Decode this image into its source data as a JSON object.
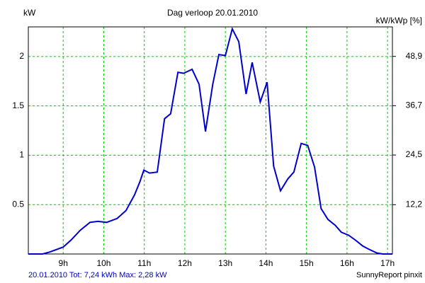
{
  "chart_data": {
    "type": "line",
    "title": "Dag  verloop 20.01.2010",
    "y_label": "kW",
    "y2_label": "kW/kWp [%]",
    "footer_left": "20.01.2010 Tot: 7,24 kWh Max: 2,28 kW",
    "footer_right": "SunnyReport pinxit",
    "x": [
      8.14,
      8.49,
      8.67,
      9.0,
      9.19,
      9.42,
      9.66,
      9.86,
      10.07,
      10.33,
      10.55,
      10.76,
      10.89,
      10.99,
      11.13,
      11.32,
      11.5,
      11.65,
      11.83,
      11.97,
      12.18,
      12.35,
      12.51,
      12.69,
      12.84,
      13.0,
      13.17,
      13.33,
      13.51,
      13.66,
      13.86,
      14.03,
      14.19,
      14.36,
      14.54,
      14.69,
      14.87,
      15.03,
      15.2,
      15.36,
      15.53,
      15.71,
      15.86,
      16.04,
      16.21,
      16.39,
      16.53,
      16.74,
      16.88,
      17.12
    ],
    "series": [
      {
        "color": "#0000cc",
        "values": [
          0,
          0,
          0.02,
          0.07,
          0.14,
          0.24,
          0.32,
          0.33,
          0.32,
          0.36,
          0.44,
          0.6,
          0.73,
          0.85,
          0.82,
          0.83,
          1.37,
          1.42,
          1.84,
          1.83,
          1.87,
          1.72,
          1.24,
          1.72,
          2.02,
          2.01,
          2.28,
          2.15,
          1.62,
          1.94,
          1.54,
          1.74,
          0.89,
          0.64,
          0.76,
          0.83,
          1.12,
          1.1,
          0.88,
          0.46,
          0.35,
          0.29,
          0.22,
          0.19,
          0.14,
          0.08,
          0.05,
          0.01,
          0,
          0
        ]
      }
    ],
    "xlim": [
      8.14,
      17.12
    ],
    "ylim": [
      0,
      2.3
    ],
    "y2lim": [
      0,
      56.2
    ],
    "xticks": [
      {
        "value": 9,
        "label": "9h"
      },
      {
        "value": 10,
        "label": "10h"
      },
      {
        "value": 11,
        "label": "11h"
      },
      {
        "value": 12,
        "label": "12h"
      },
      {
        "value": 13,
        "label": "13h"
      },
      {
        "value": 14,
        "label": "14h"
      },
      {
        "value": 15,
        "label": "15h"
      },
      {
        "value": 16,
        "label": "16h"
      },
      {
        "value": 17,
        "label": "17h"
      }
    ],
    "yticks": [
      0.5,
      1,
      1.5,
      2
    ],
    "y2ticks": [
      {
        "value": 12.2,
        "label": "12,2"
      },
      {
        "value": 24.5,
        "label": "24,5"
      },
      {
        "value": 36.7,
        "label": "36,7"
      },
      {
        "value": 48.9,
        "label": "48,9"
      }
    ],
    "grid": true,
    "grid_color": "#00cc00"
  }
}
